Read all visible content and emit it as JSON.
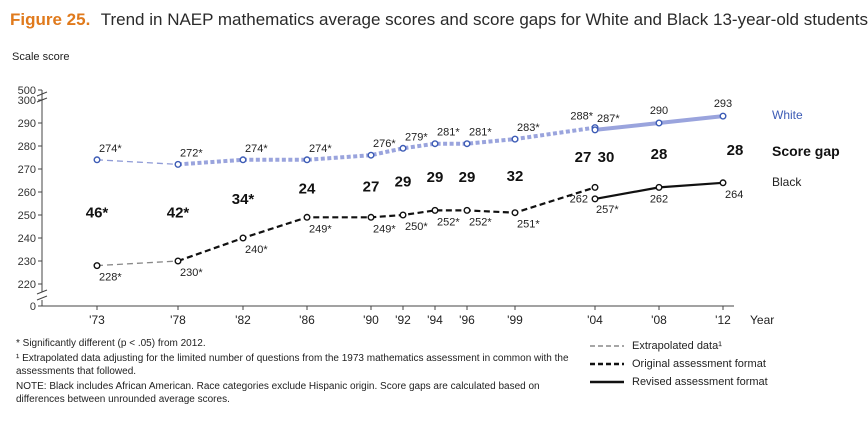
{
  "title": {
    "figure_label": "Figure 25.",
    "text": "Trend in NAEP mathematics average scores and score gaps for White and Black 13-year-old students"
  },
  "chart_data": {
    "type": "line",
    "ylabel": "Scale score",
    "xlabel": "Year",
    "y_ticks": [
      0,
      220,
      230,
      240,
      250,
      260,
      270,
      280,
      290,
      300
    ],
    "y_top_tick": "500",
    "ylim": [
      215,
      305
    ],
    "axis_break": true,
    "x_categories": [
      "'73",
      "'78",
      "'82",
      "'86",
      "'90",
      "'92",
      "'94",
      "'96",
      "'99",
      "'04",
      "'08",
      "'12"
    ],
    "x_years": [
      1973,
      1978,
      1982,
      1986,
      1990,
      1992,
      1994,
      1996,
      1999,
      2004,
      2008,
      2012
    ],
    "series": [
      {
        "name": "White",
        "color": "#5b6fbf",
        "extrapolated": {
          "x": [
            1973,
            1978
          ],
          "y": [
            274,
            272
          ],
          "labels": [
            "274*",
            "272*"
          ]
        },
        "original": {
          "x": [
            1978,
            1982,
            1986,
            1990,
            1992,
            1994,
            1996,
            1999,
            2004
          ],
          "y": [
            272,
            274,
            274,
            276,
            279,
            281,
            281,
            283,
            288
          ],
          "labels": [
            "",
            "274*",
            "274*",
            "276*",
            "279*",
            "281*",
            "281*",
            "283*",
            "288*"
          ]
        },
        "revised": {
          "x": [
            2004,
            2008,
            2012
          ],
          "y": [
            287,
            290,
            293
          ],
          "labels": [
            "287*",
            "290",
            "293"
          ]
        }
      },
      {
        "name": "Black",
        "color": "#111111",
        "extrapolated": {
          "x": [
            1973,
            1978
          ],
          "y": [
            228,
            230
          ],
          "labels": [
            "228*",
            "230*"
          ]
        },
        "original": {
          "x": [
            1978,
            1982,
            1986,
            1990,
            1992,
            1994,
            1996,
            1999,
            2004
          ],
          "y": [
            230,
            240,
            249,
            249,
            250,
            252,
            252,
            251,
            262
          ],
          "labels": [
            "",
            "240*",
            "249*",
            "249*",
            "250*",
            "252*",
            "252*",
            "251*",
            "262"
          ]
        },
        "revised": {
          "x": [
            2004,
            2008,
            2012
          ],
          "y": [
            257,
            262,
            264
          ],
          "labels": [
            "257*",
            "262",
            "264"
          ]
        }
      }
    ],
    "score_gap_label": "Score gap",
    "score_gaps": [
      {
        "x": 1973,
        "label": "46*"
      },
      {
        "x": 1978,
        "label": "42*"
      },
      {
        "x": 1982,
        "label": "34*"
      },
      {
        "x": 1986,
        "label": "24"
      },
      {
        "x": 1990,
        "label": "27"
      },
      {
        "x": 1992,
        "label": "29"
      },
      {
        "x": 1994,
        "label": "29"
      },
      {
        "x": 1996,
        "label": "29"
      },
      {
        "x": 1999,
        "label": "32"
      },
      {
        "x": 2004,
        "label": "27"
      },
      {
        "x": 2004,
        "label": "30"
      },
      {
        "x": 2008,
        "label": "28"
      },
      {
        "x": 2012,
        "label": "28"
      }
    ]
  },
  "footnotes": {
    "significance": "* Significantly different (p < .05) from 2012.",
    "extrapolated": "¹ Extrapolated data adjusting for the limited number of questions from the 1973 mathematics assessment in common with the assessments that followed.",
    "note": "NOTE: Black includes African American. Race categories exclude Hispanic origin. Score gaps are calculated based on differences between unrounded average scores."
  },
  "legend": {
    "extrapolated": "Extrapolated data¹",
    "original": "Original assessment format",
    "revised": "Revised assessment format"
  }
}
